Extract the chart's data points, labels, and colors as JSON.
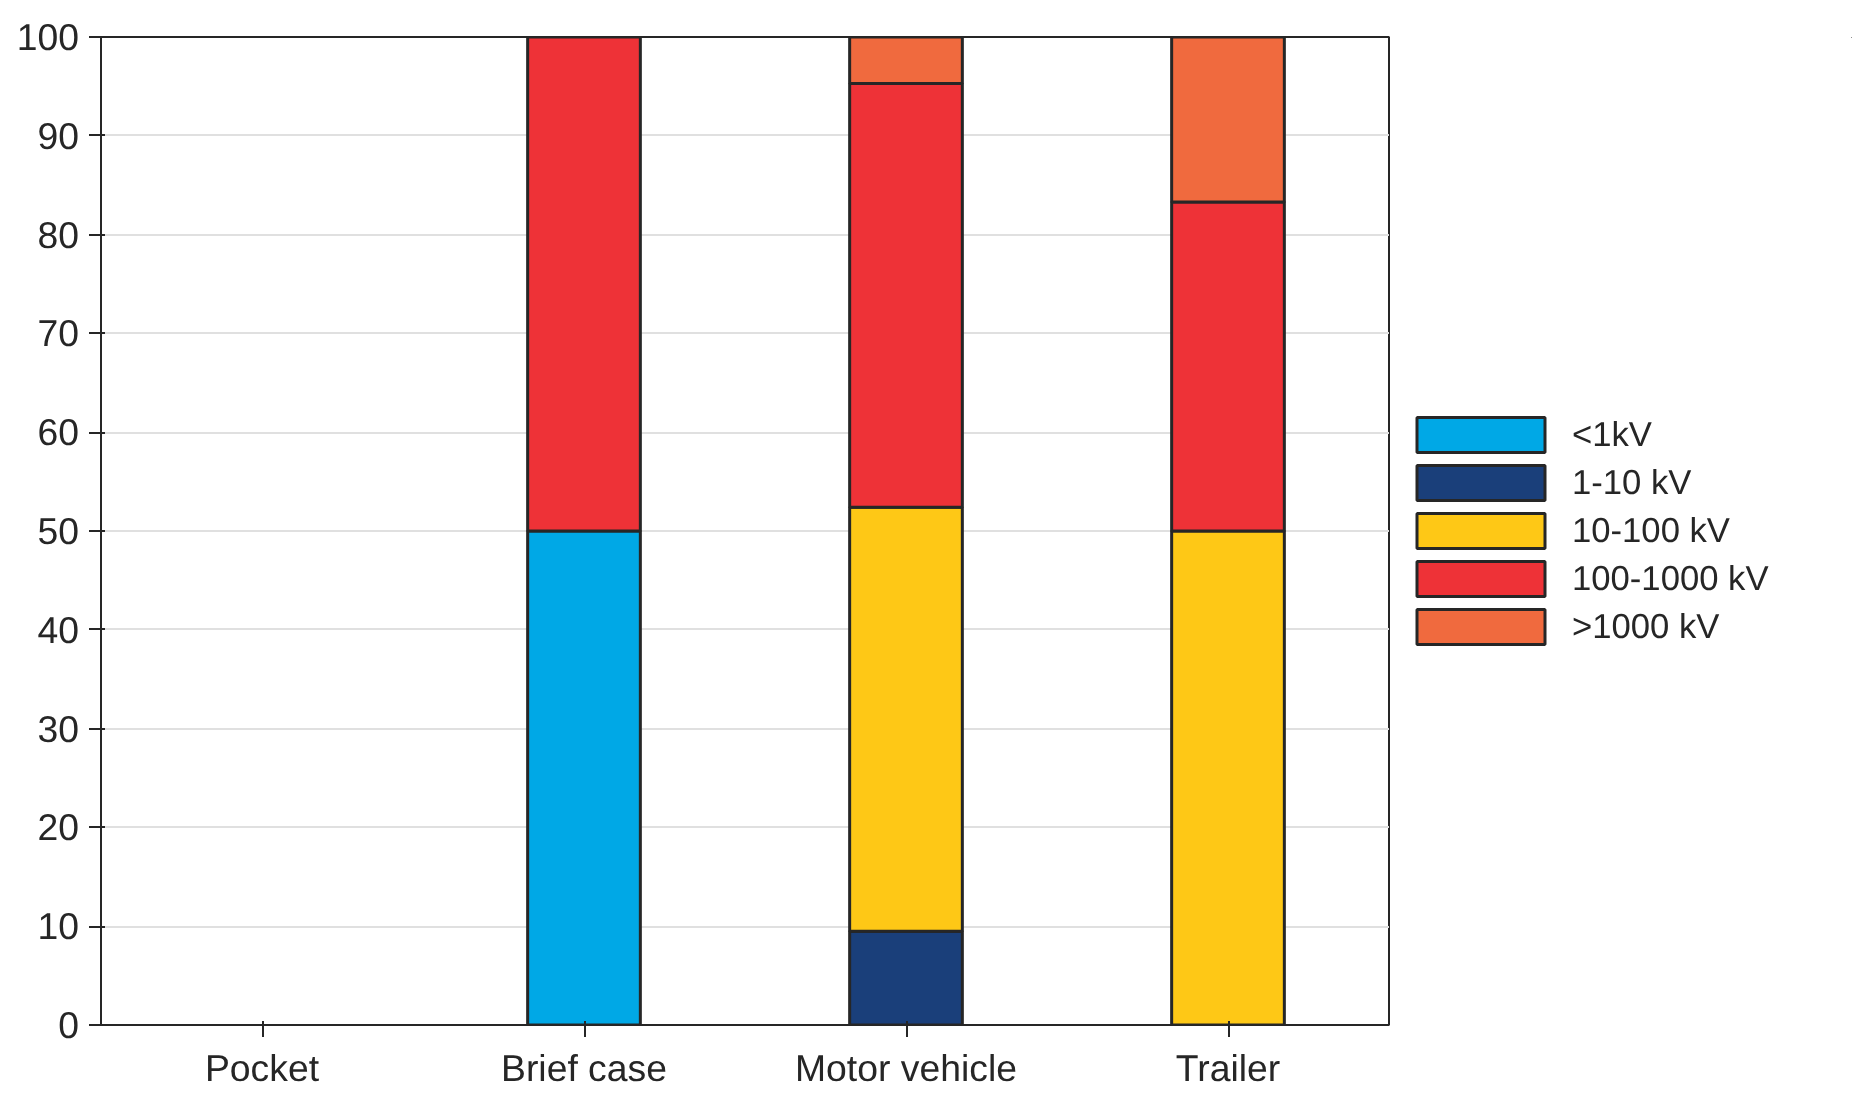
{
  "chart_data": {
    "type": "bar",
    "stacked": true,
    "categories": [
      "Pocket",
      "Brief case",
      "Motor vehicle",
      "Trailer"
    ],
    "series": [
      {
        "name": "<1kV",
        "color": "#00a8e6",
        "values": [
          0,
          50,
          0,
          0
        ]
      },
      {
        "name": "1-10 kV",
        "color": "#1a3f7a",
        "values": [
          0,
          0,
          9.5,
          0
        ]
      },
      {
        "name": "10-100 kV",
        "color": "#fec816",
        "values": [
          0,
          0,
          42.9,
          50
        ]
      },
      {
        "name": "100-1000 kV",
        "color": "#ee3237",
        "values": [
          0,
          50,
          42.9,
          33.3
        ]
      },
      {
        "name": ">1000 kV",
        "color": "#f06a3e",
        "values": [
          0,
          0,
          4.7,
          16.7
        ]
      }
    ],
    "ylim": [
      0,
      100
    ],
    "yticks": [
      0,
      10,
      20,
      30,
      40,
      50,
      60,
      70,
      80,
      90,
      100
    ],
    "grid": "y",
    "legend": "right"
  }
}
